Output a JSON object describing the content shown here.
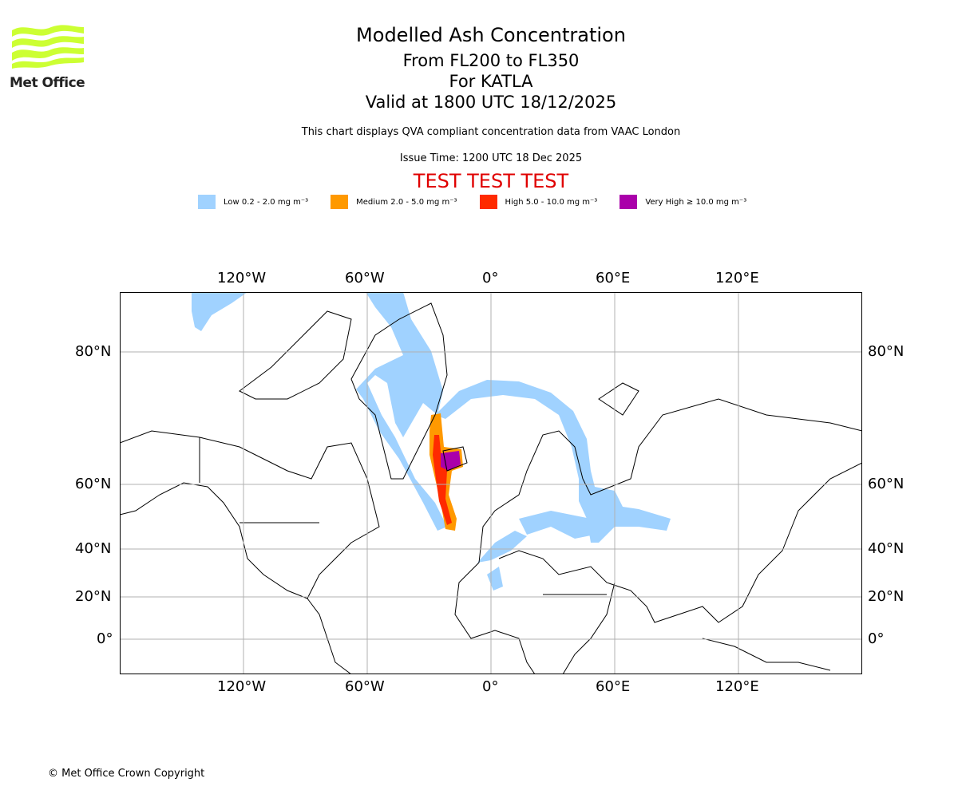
{
  "logo": {
    "text": "Met Office"
  },
  "header": {
    "title": "Modelled Ash Concentration",
    "levels": "From FL200 to FL350",
    "volcano": "For KATLA",
    "valid": "Valid at 1800 UTC 18/12/2025",
    "description": "This chart displays QVA compliant concentration data from VAAC London",
    "issue_time": "Issue Time: 1200 UTC 18 Dec 2025",
    "test_banner": "TEST TEST TEST"
  },
  "legend": [
    {
      "label": "Low 0.2 - 2.0 mg m⁻³",
      "color": "#a0d2ff"
    },
    {
      "label": "Medium 2.0 - 5.0 mg m⁻³",
      "color": "#ff9900"
    },
    {
      "label": "High 5.0 - 10.0 mg m⁻³",
      "color": "#ff2a00"
    },
    {
      "label": "Very High ≥ 10.0 mg m⁻³",
      "color": "#aa00aa"
    }
  ],
  "map": {
    "lon_labels": [
      "120°W",
      "60°W",
      "0°",
      "60°E",
      "120°E"
    ],
    "lat_labels": [
      "80°N",
      "60°N",
      "40°N",
      "20°N",
      "0°"
    ]
  },
  "footer": {
    "copyright": "© Met Office Crown Copyright"
  }
}
